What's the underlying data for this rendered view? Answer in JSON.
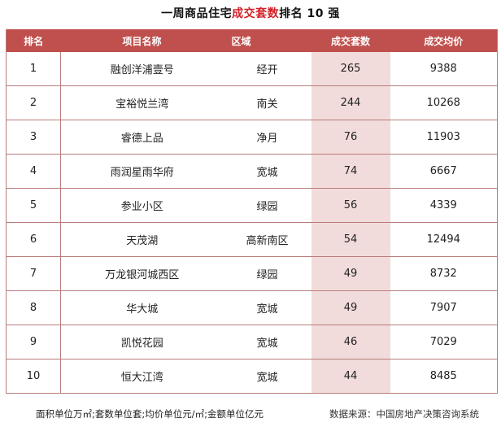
{
  "title": {
    "prefix": "一周商品住宅",
    "highlight": "成交套数",
    "suffix": "排名 10 强"
  },
  "table": {
    "headers": [
      "排名",
      "项目名称",
      "区域",
      "成交套数",
      "成交均价"
    ],
    "rows": [
      {
        "rank": "1",
        "name": "融创洋浦壹号",
        "area": "经开",
        "units": "265",
        "price": "9388"
      },
      {
        "rank": "2",
        "name": "宝裕悦兰湾",
        "area": "南关",
        "units": "244",
        "price": "10268"
      },
      {
        "rank": "3",
        "name": "睿德上品",
        "area": "净月",
        "units": "76",
        "price": "11903"
      },
      {
        "rank": "4",
        "name": "雨润星雨华府",
        "area": "宽城",
        "units": "74",
        "price": "6667"
      },
      {
        "rank": "5",
        "name": "参业小区",
        "area": "绿园",
        "units": "56",
        "price": "4339"
      },
      {
        "rank": "6",
        "name": "天茂湖",
        "area": "高新南区",
        "units": "54",
        "price": "12494"
      },
      {
        "rank": "7",
        "name": "万龙银河城西区",
        "area": "绿园",
        "units": "49",
        "price": "8732"
      },
      {
        "rank": "8",
        "name": "华大城",
        "area": "宽城",
        "units": "49",
        "price": "7907"
      },
      {
        "rank": "9",
        "name": "凯悦花园",
        "area": "宽城",
        "units": "46",
        "price": "7029"
      },
      {
        "rank": "10",
        "name": "恒大江湾",
        "area": "宽城",
        "units": "44",
        "price": "8485"
      }
    ]
  },
  "footer": {
    "units_note": "面积单位万㎡;套数单位套;均价单位元/㎡;金额单位亿元",
    "source": "数据来源：中国房地产决策咨询系统"
  },
  "colors": {
    "header_bg": "#c0504d",
    "highlight_col_bg": "#f2dcdb",
    "title_accent": "#d21f25"
  }
}
